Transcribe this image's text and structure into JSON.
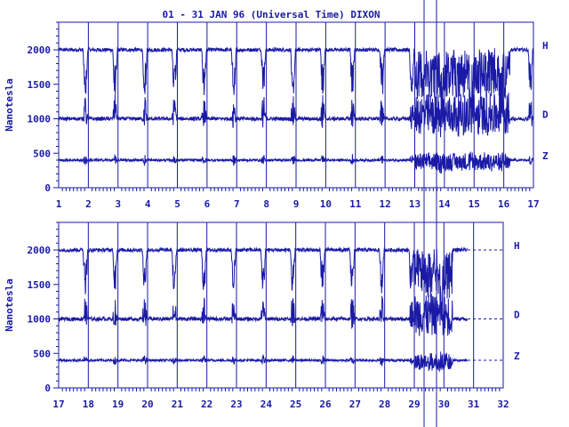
{
  "title": "01 - 31 JAN 96 (Universal Time) DIXON",
  "colors": {
    "ink": "#1a1aa6",
    "bg": "#ffffff"
  },
  "chart_data": [
    {
      "type": "line",
      "title": "01 - 31 JAN 96 (Universal Time) DIXON",
      "ylabel": "Nanotesla",
      "xlabel": "",
      "xlim": [
        1,
        17
      ],
      "ylim": [
        0,
        2400
      ],
      "x_ticks": [
        "1",
        "2",
        "3",
        "4",
        "5",
        "6",
        "7",
        "8",
        "9",
        "10",
        "11",
        "12",
        "13",
        "14",
        "15",
        "16",
        "17"
      ],
      "y_ticks": [
        "0",
        "500",
        "1000",
        "1500",
        "2000"
      ],
      "series": [
        {
          "name": "H",
          "baseline": 2000
        },
        {
          "name": "D",
          "baseline": 1000
        },
        {
          "name": "Z",
          "baseline": 400
        }
      ],
      "grid": true
    },
    {
      "type": "line",
      "title": "",
      "ylabel": "Nanotesla",
      "xlabel": "",
      "xlim": [
        17,
        32
      ],
      "ylim": [
        0,
        2400
      ],
      "x_ticks": [
        "17",
        "18",
        "19",
        "20",
        "21",
        "22",
        "23",
        "24",
        "25",
        "26",
        "27",
        "28",
        "29",
        "30",
        "31",
        "32"
      ],
      "y_ticks": [
        "0",
        "500",
        "1000",
        "1500",
        "2000"
      ],
      "series": [
        {
          "name": "H",
          "baseline": 2000
        },
        {
          "name": "D",
          "baseline": 1000
        },
        {
          "name": "Z",
          "baseline": 400
        }
      ],
      "data_end": 30.8,
      "grid": true
    }
  ]
}
